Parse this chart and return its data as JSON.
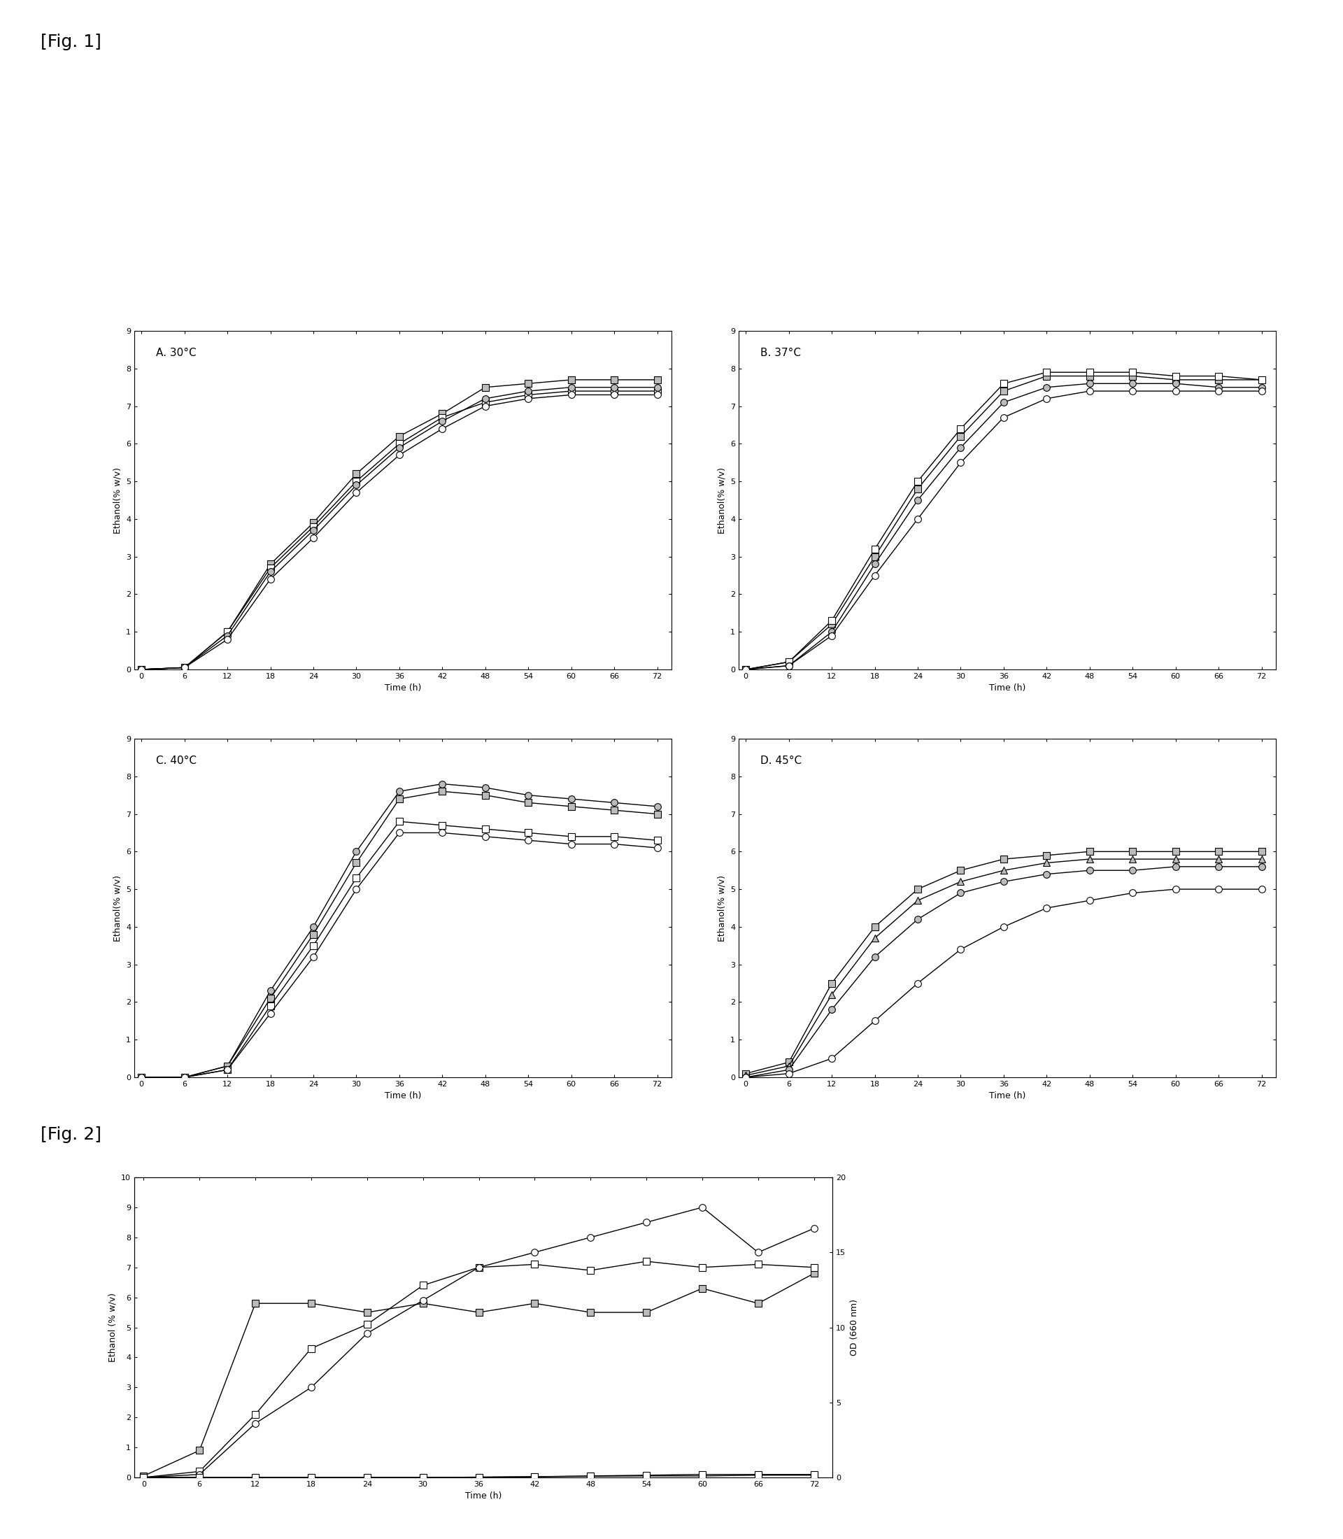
{
  "fig1_title": "[Fig. 1]",
  "fig2_title": "[Fig. 2]",
  "time_points": [
    0,
    6,
    12,
    18,
    24,
    30,
    36,
    42,
    48,
    54,
    60,
    66,
    72
  ],
  "panels": {
    "A": {
      "title": "A. 30°C",
      "series": [
        {
          "marker": "s",
          "filled": true,
          "y": [
            0.0,
            0.05,
            1.0,
            2.8,
            3.9,
            5.2,
            6.2,
            6.8,
            7.5,
            7.6,
            7.7,
            7.7,
            7.7
          ]
        },
        {
          "marker": "s",
          "filled": false,
          "y": [
            0.0,
            0.05,
            1.0,
            2.7,
            3.8,
            5.0,
            6.0,
            6.7,
            7.1,
            7.3,
            7.4,
            7.4,
            7.4
          ]
        },
        {
          "marker": "o",
          "filled": true,
          "y": [
            0.0,
            0.05,
            0.9,
            2.6,
            3.7,
            4.9,
            5.9,
            6.6,
            7.2,
            7.4,
            7.5,
            7.5,
            7.5
          ]
        },
        {
          "marker": "o",
          "filled": false,
          "y": [
            0.0,
            0.05,
            0.8,
            2.4,
            3.5,
            4.7,
            5.7,
            6.4,
            7.0,
            7.2,
            7.3,
            7.3,
            7.3
          ]
        }
      ],
      "ylim": [
        0,
        9
      ],
      "yticks": [
        0,
        1,
        2,
        3,
        4,
        5,
        6,
        7,
        8,
        9
      ]
    },
    "B": {
      "title": "B. 37°C",
      "series": [
        {
          "marker": "s",
          "filled": true,
          "y": [
            0.0,
            0.2,
            1.2,
            3.0,
            4.8,
            6.2,
            7.4,
            7.8,
            7.8,
            7.8,
            7.7,
            7.7,
            7.7
          ]
        },
        {
          "marker": "s",
          "filled": false,
          "y": [
            0.0,
            0.2,
            1.3,
            3.2,
            5.0,
            6.4,
            7.6,
            7.9,
            7.9,
            7.9,
            7.8,
            7.8,
            7.7
          ]
        },
        {
          "marker": "o",
          "filled": true,
          "y": [
            0.0,
            0.1,
            1.0,
            2.8,
            4.5,
            5.9,
            7.1,
            7.5,
            7.6,
            7.6,
            7.6,
            7.5,
            7.5
          ]
        },
        {
          "marker": "o",
          "filled": false,
          "y": [
            0.0,
            0.1,
            0.9,
            2.5,
            4.0,
            5.5,
            6.7,
            7.2,
            7.4,
            7.4,
            7.4,
            7.4,
            7.4
          ]
        }
      ],
      "ylim": [
        0,
        9
      ],
      "yticks": [
        0,
        1,
        2,
        3,
        4,
        5,
        6,
        7,
        8,
        9
      ]
    },
    "C": {
      "title": "C. 40°C",
      "series": [
        {
          "marker": "o",
          "filled": true,
          "y": [
            0.0,
            0.0,
            0.3,
            2.3,
            4.0,
            6.0,
            7.6,
            7.8,
            7.7,
            7.5,
            7.4,
            7.3,
            7.2
          ]
        },
        {
          "marker": "s",
          "filled": true,
          "y": [
            0.0,
            0.0,
            0.3,
            2.1,
            3.8,
            5.7,
            7.4,
            7.6,
            7.5,
            7.3,
            7.2,
            7.1,
            7.0
          ]
        },
        {
          "marker": "s",
          "filled": false,
          "y": [
            0.0,
            0.0,
            0.2,
            1.9,
            3.5,
            5.3,
            6.8,
            6.7,
            6.6,
            6.5,
            6.4,
            6.4,
            6.3
          ]
        },
        {
          "marker": "o",
          "filled": false,
          "y": [
            0.0,
            0.0,
            0.2,
            1.7,
            3.2,
            5.0,
            6.5,
            6.5,
            6.4,
            6.3,
            6.2,
            6.2,
            6.1
          ]
        }
      ],
      "ylim": [
        0,
        9
      ],
      "yticks": [
        0,
        1,
        2,
        3,
        4,
        5,
        6,
        7,
        8,
        9
      ]
    },
    "D": {
      "title": "D. 45°C",
      "series": [
        {
          "marker": "s",
          "filled": true,
          "y": [
            0.1,
            0.4,
            2.5,
            4.0,
            5.0,
            5.5,
            5.8,
            5.9,
            6.0,
            6.0,
            6.0,
            6.0,
            6.0
          ]
        },
        {
          "marker": "^",
          "filled": true,
          "y": [
            0.05,
            0.3,
            2.2,
            3.7,
            4.7,
            5.2,
            5.5,
            5.7,
            5.8,
            5.8,
            5.8,
            5.8,
            5.8
          ]
        },
        {
          "marker": "o",
          "filled": true,
          "y": [
            0.0,
            0.2,
            1.8,
            3.2,
            4.2,
            4.9,
            5.2,
            5.4,
            5.5,
            5.5,
            5.6,
            5.6,
            5.6
          ]
        },
        {
          "marker": "o",
          "filled": false,
          "y": [
            0.0,
            0.1,
            0.5,
            1.5,
            2.5,
            3.4,
            4.0,
            4.5,
            4.7,
            4.9,
            5.0,
            5.0,
            5.0
          ]
        }
      ],
      "ylim": [
        0,
        9
      ],
      "yticks": [
        0,
        1,
        2,
        3,
        4,
        5,
        6,
        7,
        8,
        9
      ]
    }
  },
  "fig2": {
    "time_points": [
      0,
      6,
      12,
      18,
      24,
      30,
      36,
      42,
      48,
      54,
      60,
      66,
      72
    ],
    "ethanol_series": [
      {
        "marker": "s",
        "filled": true,
        "y": [
          0.05,
          0.9,
          5.8,
          5.8,
          5.5,
          5.8,
          5.5,
          5.8,
          5.5,
          5.5,
          6.3,
          5.8,
          6.8
        ]
      },
      {
        "marker": "s",
        "filled": false,
        "y": [
          0.0,
          0.2,
          2.1,
          4.3,
          5.1,
          6.4,
          7.0,
          7.1,
          6.9,
          7.2,
          7.0,
          7.1,
          7.0
        ]
      },
      {
        "marker": "o",
        "filled": false,
        "y": [
          0.0,
          0.1,
          1.8,
          3.0,
          4.8,
          5.9,
          7.0,
          7.5,
          8.0,
          8.5,
          9.0,
          7.5,
          8.3
        ]
      }
    ],
    "od_series": [
      {
        "marker": "s",
        "filled": true,
        "y": [
          0.0,
          0.0,
          0.0,
          0.0,
          0.0,
          0.0,
          0.02,
          0.05,
          0.08,
          0.1,
          0.1,
          0.15,
          0.15
        ]
      },
      {
        "marker": "s",
        "filled": false,
        "y": [
          0.0,
          0.0,
          0.0,
          0.0,
          0.0,
          0.0,
          0.02,
          0.05,
          0.1,
          0.15,
          0.2,
          0.2,
          0.2
        ]
      }
    ],
    "ylim_ethanol": [
      0,
      10
    ],
    "ylim_od": [
      0,
      20
    ],
    "yticks_ethanol": [
      0,
      1,
      2,
      3,
      4,
      5,
      6,
      7,
      8,
      9,
      10
    ],
    "yticks_od": [
      0,
      5,
      10,
      15,
      20
    ],
    "ylabel_left": "Ethanol (% w/v)",
    "ylabel_right": "OD (660 nm)"
  },
  "xlabel": "Time (h)",
  "xticks": [
    0,
    6,
    12,
    18,
    24,
    30,
    36,
    42,
    48,
    54,
    60,
    66,
    72
  ],
  "ylabel": "Ethanol(% w/v)",
  "bg_color": "#ffffff"
}
